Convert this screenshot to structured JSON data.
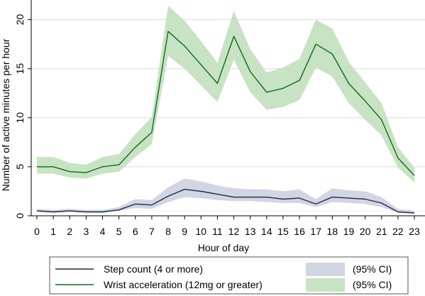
{
  "chart_data": {
    "type": "line",
    "xlabel": "Hour of day",
    "ylabel": "Number of active minutes per hour",
    "x": [
      0,
      1,
      2,
      3,
      4,
      5,
      6,
      7,
      8,
      9,
      10,
      11,
      12,
      13,
      14,
      15,
      16,
      17,
      18,
      19,
      20,
      21,
      22,
      23
    ],
    "xlim": [
      0,
      23
    ],
    "ylim": [
      0,
      22
    ],
    "yticks": [
      0,
      5,
      10,
      15,
      20
    ],
    "grid": "horizontal",
    "legend_position": "bottom",
    "series": [
      {
        "name": "Step count (4 or more)",
        "color": "#1f2d4a",
        "values": [
          0.5,
          0.4,
          0.5,
          0.4,
          0.4,
          0.6,
          1.2,
          1.1,
          2.0,
          2.7,
          2.5,
          2.2,
          1.9,
          1.9,
          1.9,
          1.7,
          1.8,
          1.2,
          1.9,
          1.8,
          1.7,
          1.3,
          0.4,
          0.3
        ],
        "ci_lower": [
          0.4,
          0.3,
          0.4,
          0.3,
          0.3,
          0.5,
          0.8,
          0.7,
          1.4,
          1.9,
          1.8,
          1.6,
          1.5,
          1.5,
          1.4,
          1.3,
          1.3,
          0.9,
          1.4,
          1.3,
          1.2,
          0.9,
          0.3,
          0.2
        ],
        "ci_upper": [
          0.7,
          0.6,
          0.7,
          0.6,
          0.6,
          0.9,
          1.7,
          1.6,
          2.9,
          3.8,
          3.5,
          3.1,
          2.8,
          2.7,
          2.7,
          2.5,
          2.7,
          1.7,
          2.8,
          2.6,
          2.5,
          1.9,
          0.7,
          0.5
        ],
        "ci_label": "(95% CI)",
        "ci_color": "#d2d5e2"
      },
      {
        "name": "Wrist acceleration (12mg or greater)",
        "color": "#0c6b1e",
        "values": [
          5.0,
          5.0,
          4.5,
          4.4,
          5.0,
          5.2,
          7.0,
          8.5,
          18.8,
          17.3,
          15.4,
          13.5,
          18.3,
          14.7,
          12.6,
          13.0,
          13.8,
          17.5,
          16.5,
          13.5,
          11.7,
          9.8,
          5.9,
          4.1
        ],
        "ci_lower": [
          4.3,
          4.3,
          3.9,
          3.8,
          4.3,
          4.5,
          6.0,
          7.3,
          16.3,
          15.0,
          13.3,
          11.6,
          15.9,
          12.6,
          10.8,
          11.1,
          11.8,
          15.1,
          14.2,
          11.5,
          9.8,
          8.2,
          4.9,
          3.4
        ],
        "ci_upper": [
          6.0,
          6.0,
          5.4,
          5.2,
          6.0,
          6.3,
          8.3,
          10.1,
          21.4,
          19.9,
          17.8,
          15.6,
          20.9,
          17.0,
          14.6,
          15.1,
          16.0,
          20.0,
          19.1,
          15.7,
          13.6,
          11.5,
          7.0,
          4.9
        ],
        "ci_label": "(95% CI)",
        "ci_color": "#c8e3c3"
      }
    ]
  }
}
